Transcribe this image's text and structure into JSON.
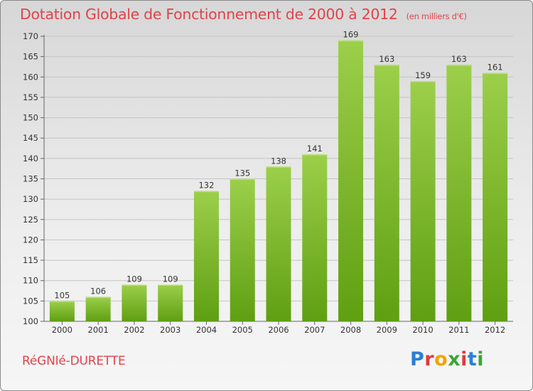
{
  "header": {
    "title": "Dotation Globale de Fonctionnement de 2000 à 2012",
    "unit": "(en milliers d'€)"
  },
  "footer": {
    "commune": "RéGNIé-DURETTE",
    "brand": "Proxiti",
    "brand_colors": [
      "#2a7fd4",
      "#e03a3a",
      "#f2a400",
      "#3aa636",
      "#e03a3a",
      "#2a7fd4",
      "#3aa636"
    ]
  },
  "chart_data": {
    "type": "bar",
    "title": "Dotation Globale de Fonctionnement de 2000 à 2012",
    "subtitle": "(en milliers d'€)",
    "xlabel": "",
    "ylabel": "",
    "categories": [
      "2000",
      "2001",
      "2002",
      "2003",
      "2004",
      "2005",
      "2006",
      "2007",
      "2008",
      "2009",
      "2010",
      "2011",
      "2012"
    ],
    "values": [
      105,
      106,
      109,
      109,
      132,
      135,
      138,
      141,
      169,
      163,
      159,
      163,
      161
    ],
    "ylim": [
      100,
      170
    ],
    "yticks": [
      100,
      105,
      110,
      115,
      120,
      125,
      130,
      135,
      140,
      145,
      150,
      155,
      160,
      165,
      170
    ],
    "grid": true,
    "bar_color_top": "#9ccf4a",
    "bar_color_bottom": "#5f9f12"
  }
}
